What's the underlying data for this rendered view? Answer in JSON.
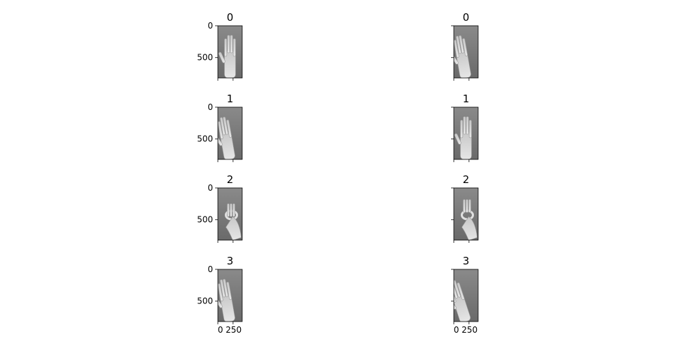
{
  "chart_data": {
    "type": "image-grid",
    "image_desc": "grayscale photo of a hand gesture",
    "shared_axes": true,
    "ylim": [
      820,
      0
    ],
    "xlim": [
      0,
      400
    ],
    "yticks": [
      0,
      500
    ],
    "xticks": [
      0,
      250
    ],
    "panels": [
      {
        "title": "0",
        "gesture": "open-palm"
      },
      {
        "title": "0",
        "gesture": "open-palm-tilted"
      },
      {
        "title": "1",
        "gesture": "open-palm-tilted"
      },
      {
        "title": "1",
        "gesture": "open-palm"
      },
      {
        "title": "2",
        "gesture": "ok-sign-side"
      },
      {
        "title": "2",
        "gesture": "ok-sign-up"
      },
      {
        "title": "3",
        "gesture": "open-palm-tilted"
      },
      {
        "title": "3",
        "gesture": "open-palm-side"
      }
    ],
    "grid": false,
    "legend": "none"
  }
}
